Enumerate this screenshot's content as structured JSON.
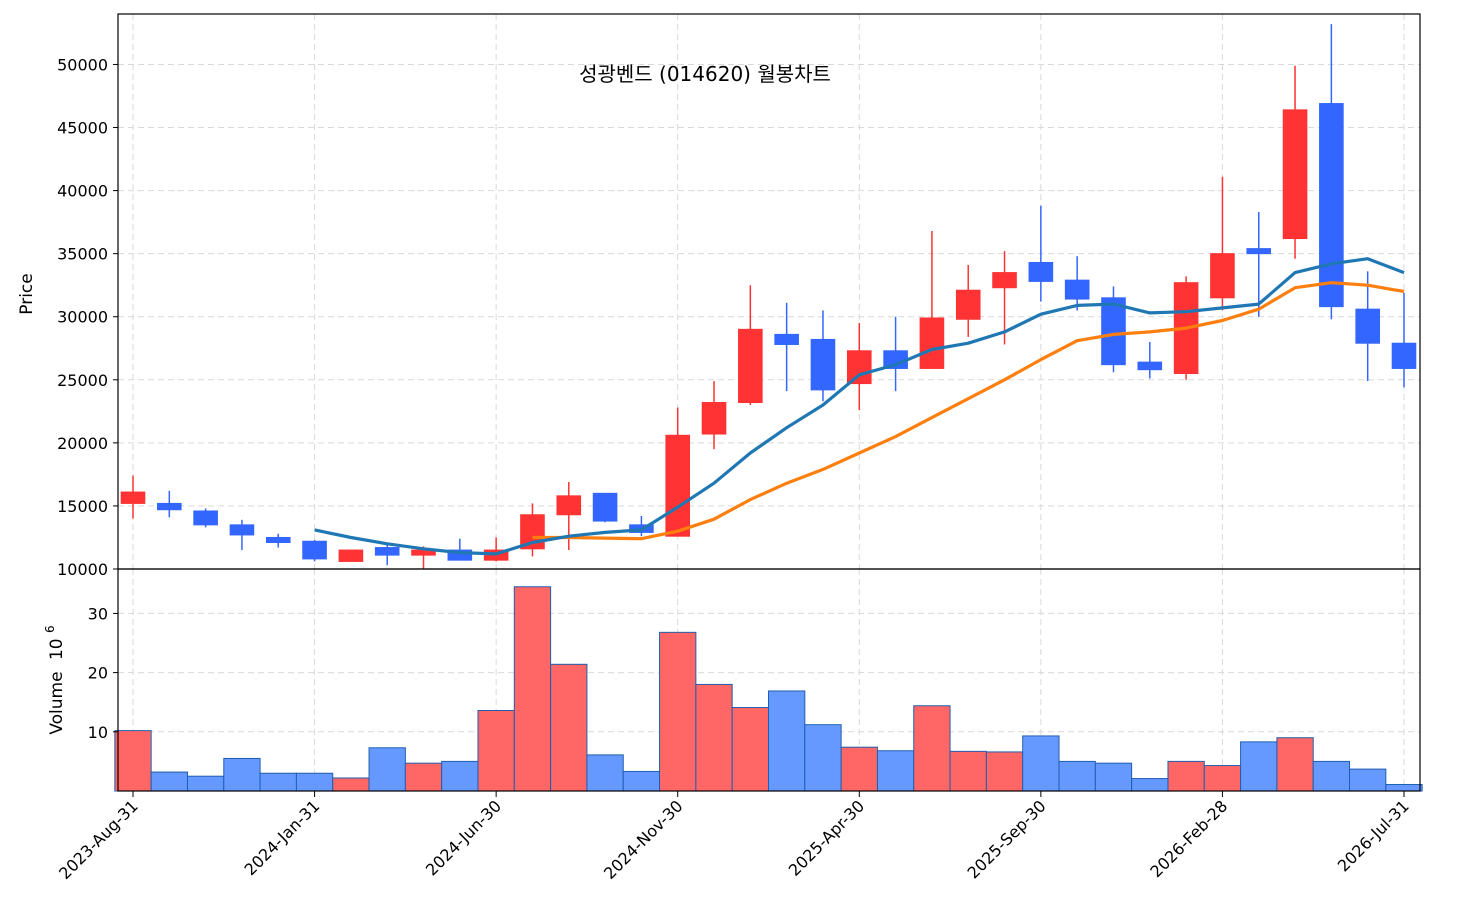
{
  "chart_data": {
    "type": "candlestick",
    "title": "성광벤드 (014620) 월봉차트",
    "ylabel_price": "Price",
    "ylabel_volume": "Volume",
    "volume_exponent_label": "10",
    "volume_exponent_power": "6",
    "price_ylim": [
      10000,
      54000
    ],
    "price_ticks": [
      10000,
      15000,
      20000,
      25000,
      30000,
      35000,
      40000,
      45000,
      50000
    ],
    "volume_ylim": [
      0,
      37.5
    ],
    "volume_ticks": [
      10,
      20,
      30
    ],
    "x_tick_indices": [
      0,
      5,
      10,
      15,
      20,
      25,
      30,
      35
    ],
    "x_tick_labels": [
      "2023-Aug-31",
      "2024-Jan-31",
      "2024-Jun-30",
      "2024-Nov-30",
      "2025-Apr-30",
      "2025-Sep-30",
      "2026-Feb-28",
      "2026-Jul-31"
    ],
    "grid": true,
    "colors": {
      "up": "#ff3333",
      "down": "#3366ff",
      "vol_up": "#ff6666",
      "vol_down": "#6699ff",
      "ma_short": "#1f77b4",
      "ma_long": "#ff7f0e"
    },
    "candles": [
      {
        "o": 15200,
        "h": 17400,
        "l": 14000,
        "c": 16100
      },
      {
        "o": 15200,
        "h": 16200,
        "l": 14100,
        "c": 14700
      },
      {
        "o": 14600,
        "h": 14800,
        "l": 13300,
        "c": 13500
      },
      {
        "o": 13500,
        "h": 13900,
        "l": 11500,
        "c": 12700
      },
      {
        "o": 12500,
        "h": 12800,
        "l": 11700,
        "c": 12100
      },
      {
        "o": 12200,
        "h": 12300,
        "l": 10600,
        "c": 10800
      },
      {
        "o": 10600,
        "h": 11500,
        "l": 10600,
        "c": 11500
      },
      {
        "o": 11700,
        "h": 12100,
        "l": 10300,
        "c": 11100
      },
      {
        "o": 11100,
        "h": 11800,
        "l": 10000,
        "c": 11500
      },
      {
        "o": 11500,
        "h": 12400,
        "l": 10700,
        "c": 10700
      },
      {
        "o": 10700,
        "h": 12500,
        "l": 10600,
        "c": 11500
      },
      {
        "o": 11600,
        "h": 15200,
        "l": 11000,
        "c": 14300
      },
      {
        "o": 14300,
        "h": 16900,
        "l": 11500,
        "c": 15800
      },
      {
        "o": 16000,
        "h": 16000,
        "l": 13700,
        "c": 13800
      },
      {
        "o": 13500,
        "h": 14200,
        "l": 12600,
        "c": 12900
      },
      {
        "o": 12600,
        "h": 22800,
        "l": 12600,
        "c": 20600
      },
      {
        "o": 20700,
        "h": 24900,
        "l": 19500,
        "c": 23200
      },
      {
        "o": 23200,
        "h": 32500,
        "l": 23000,
        "c": 29000
      },
      {
        "o": 28600,
        "h": 31100,
        "l": 24100,
        "c": 27800
      },
      {
        "o": 28200,
        "h": 30500,
        "l": 23300,
        "c": 24200
      },
      {
        "o": 24700,
        "h": 29500,
        "l": 22600,
        "c": 27300
      },
      {
        "o": 27300,
        "h": 30000,
        "l": 24100,
        "c": 25900
      },
      {
        "o": 25900,
        "h": 36800,
        "l": 25900,
        "c": 29900
      },
      {
        "o": 29800,
        "h": 34100,
        "l": 28400,
        "c": 32100
      },
      {
        "o": 32300,
        "h": 35200,
        "l": 27800,
        "c": 33500
      },
      {
        "o": 34300,
        "h": 38800,
        "l": 31200,
        "c": 32800
      },
      {
        "o": 32900,
        "h": 34800,
        "l": 30500,
        "c": 31400
      },
      {
        "o": 31500,
        "h": 32400,
        "l": 25600,
        "c": 26200
      },
      {
        "o": 26400,
        "h": 28000,
        "l": 25100,
        "c": 25800
      },
      {
        "o": 25500,
        "h": 33200,
        "l": 25000,
        "c": 32700
      },
      {
        "o": 31500,
        "h": 41100,
        "l": 30500,
        "c": 35000
      },
      {
        "o": 35400,
        "h": 38300,
        "l": 30000,
        "c": 35000
      },
      {
        "o": 36200,
        "h": 49900,
        "l": 34600,
        "c": 46400
      },
      {
        "o": 46900,
        "h": 53200,
        "l": 29800,
        "c": 30800
      },
      {
        "o": 30600,
        "h": 33600,
        "l": 24900,
        "c": 27900
      },
      {
        "o": 27900,
        "h": 31900,
        "l": 24400,
        "c": 25900
      }
    ],
    "volumes": [
      10.2,
      3.2,
      2.5,
      5.5,
      3.0,
      3.0,
      2.2,
      7.3,
      4.7,
      5.0,
      13.6,
      34.5,
      21.4,
      6.1,
      3.3,
      26.8,
      18.0,
      14.1,
      16.9,
      11.2,
      7.4,
      6.8,
      14.4,
      6.7,
      6.6,
      9.3,
      5.0,
      4.7,
      2.1,
      5.0,
      4.3,
      8.3,
      9.0,
      5.0,
      3.7,
      1.1
    ],
    "ma_short": [
      null,
      null,
      null,
      null,
      null,
      13100,
      12500,
      12000,
      11600,
      11300,
      11200,
      12100,
      12600,
      12900,
      13100,
      14900,
      16800,
      19200,
      21200,
      23000,
      25400,
      26200,
      27400,
      27900,
      28800,
      30200,
      30900,
      31000,
      30300,
      30400,
      30700,
      31000,
      33500,
      34200,
      34600,
      33500
    ],
    "ma_long": [
      null,
      null,
      null,
      null,
      null,
      null,
      null,
      null,
      null,
      null,
      null,
      12500,
      12500,
      12450,
      12400,
      13000,
      13950,
      15500,
      16800,
      17900,
      19200,
      20500,
      22000,
      23500,
      25000,
      26600,
      28100,
      28600,
      28800,
      29100,
      29700,
      30600,
      32300,
      32700,
      32500,
      32000
    ]
  }
}
